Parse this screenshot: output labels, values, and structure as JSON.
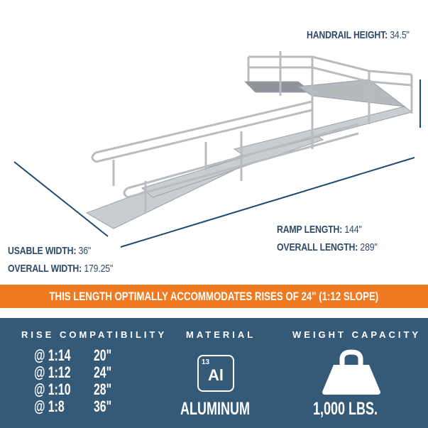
{
  "labels": {
    "handrail_height": {
      "name": "HANDRAIL HEIGHT:",
      "value": "34.5\""
    },
    "ramp_length": {
      "name": "RAMP LENGTH:",
      "value": "144\""
    },
    "overall_length": {
      "name": "OVERALL LENGTH:",
      "value": "289\""
    },
    "usable_width": {
      "name": "USABLE WIDTH:",
      "value": "36\""
    },
    "overall_width": {
      "name": "OVERALL WIDTH:",
      "value": "179.25\""
    }
  },
  "banner": "THIS LENGTH OPTIMALLY ACCOMMODATES RISES OF 24\" (1:12 SLOPE)",
  "rise": {
    "title": "RISE COMPATIBILITY",
    "rows": [
      {
        "slope": "@ 1:14",
        "rise": "20\""
      },
      {
        "slope": "@ 1:12",
        "rise": "24\""
      },
      {
        "slope": "@ 1:10",
        "rise": "28\""
      },
      {
        "slope": "@ 1:8",
        "rise": "36\""
      }
    ]
  },
  "material": {
    "title": "MATERIAL",
    "atomic_number": "13",
    "symbol": "Al",
    "name": "ALUMINUM"
  },
  "weight": {
    "title": "WEIGHT CAPACITY",
    "value": "1,000 LBS.",
    "icon": "weight-icon"
  },
  "colors": {
    "navy": "#2d4a68",
    "orange": "#f07a22",
    "panel": "#355a78"
  }
}
